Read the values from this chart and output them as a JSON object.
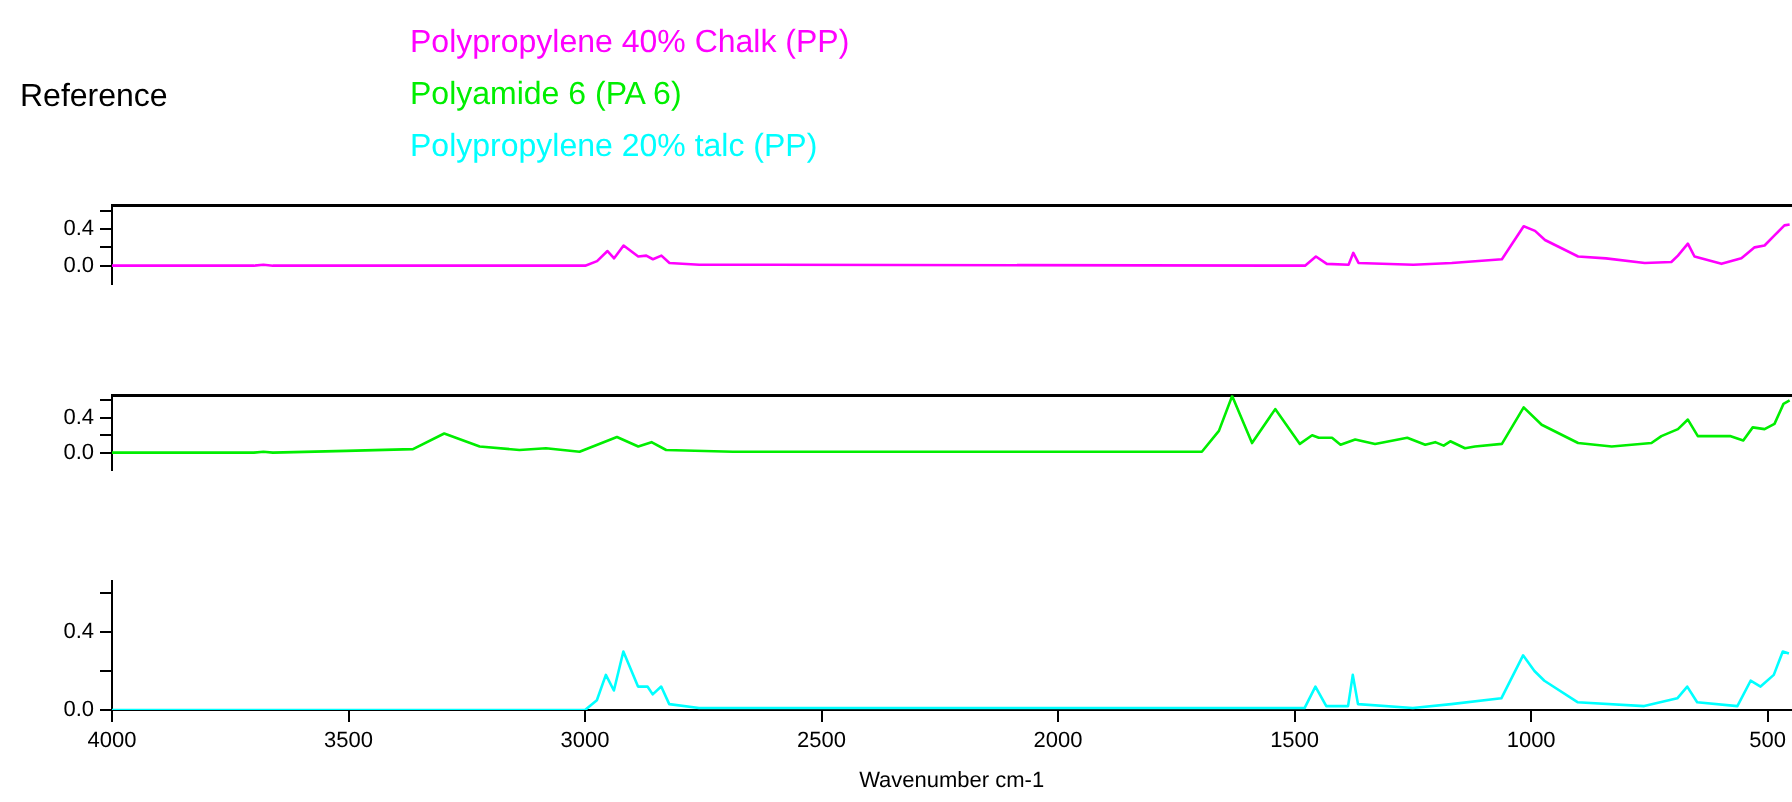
{
  "chart_data": [
    {
      "type": "line",
      "title": "Reference",
      "legend": "top",
      "marker": "none",
      "tick_labels": "y",
      "xlim": [
        4000,
        450
      ],
      "xticks": [
        4000,
        3500,
        3000,
        2500,
        2000,
        1500,
        1000,
        500
      ],
      "ylim": [
        -0.2,
        0.66
      ],
      "yticks": [
        {
          "value": 0,
          "label": "0.0"
        },
        {
          "value": 0.2,
          "label": null
        },
        {
          "value": 0.4,
          "label": "0.4"
        },
        {
          "value": 0.6,
          "label": null
        }
      ],
      "series": [
        {
          "name": "Polypropylene 40% Chalk  (PP)",
          "color": "#ff00ff",
          "x": [
            4000,
            3700,
            3680,
            3660,
            3000,
            2975,
            2953,
            2939,
            2919,
            2888,
            2871,
            2857,
            2839,
            2822,
            2759,
            2600,
            1479,
            1456,
            1433,
            1387,
            1377,
            1366,
            1250,
            1169,
            1063,
            1017,
            993,
            972,
            902,
            843,
            761,
            705,
            691,
            670,
            656,
            599,
            557,
            529,
            508,
            487,
            466,
            455
          ],
          "values": [
            0,
            0,
            0.01,
            0,
            0,
            0.05,
            0.16,
            0.08,
            0.22,
            0.1,
            0.11,
            0.07,
            0.11,
            0.03,
            0.01,
            0.01,
            0,
            0.1,
            0.02,
            0.01,
            0.14,
            0.03,
            0.01,
            0.03,
            0.07,
            0.43,
            0.38,
            0.28,
            0.1,
            0.08,
            0.03,
            0.04,
            0.11,
            0.24,
            0.1,
            0.02,
            0.08,
            0.2,
            0.22,
            0.33,
            0.44,
            0.45
          ]
        }
      ]
    },
    {
      "type": "line",
      "legend": "top",
      "marker": "none",
      "tick_labels": "y",
      "xlim": [
        4000,
        450
      ],
      "xticks": [
        4000,
        3500,
        3000,
        2500,
        2000,
        1500,
        1000,
        500
      ],
      "ylim": [
        -0.2,
        0.66
      ],
      "yticks": [
        {
          "value": 0,
          "label": "0.0"
        },
        {
          "value": 0.2,
          "label": null
        },
        {
          "value": 0.4,
          "label": "0.4"
        },
        {
          "value": 0.6,
          "label": null
        }
      ],
      "series": [
        {
          "name": "Polyamide 6 (PA 6)",
          "color": "#00ee00",
          "x": [
            4000,
            3700,
            3680,
            3660,
            3505,
            3364,
            3298,
            3223,
            3139,
            3083,
            3012,
            2933,
            2888,
            2860,
            2829,
            2688,
            1697,
            1661,
            1633,
            1591,
            1542,
            1490,
            1464,
            1450,
            1422,
            1404,
            1373,
            1331,
            1263,
            1225,
            1204,
            1186,
            1172,
            1141,
            1120,
            1063,
            1017,
            979,
            902,
            831,
            747,
            726,
            691,
            670,
            649,
            581,
            553,
            533,
            508,
            487,
            468,
            455
          ],
          "values": [
            0,
            0,
            0.01,
            0,
            0.02,
            0.04,
            0.22,
            0.07,
            0.03,
            0.05,
            0.01,
            0.18,
            0.07,
            0.12,
            0.03,
            0.01,
            0.01,
            0.25,
            0.65,
            0.11,
            0.5,
            0.1,
            0.2,
            0.17,
            0.17,
            0.09,
            0.15,
            0.1,
            0.17,
            0.09,
            0.12,
            0.08,
            0.13,
            0.05,
            0.07,
            0.1,
            0.52,
            0.32,
            0.11,
            0.07,
            0.11,
            0.19,
            0.27,
            0.38,
            0.19,
            0.19,
            0.14,
            0.29,
            0.27,
            0.33,
            0.56,
            0.6
          ]
        }
      ]
    },
    {
      "type": "line",
      "legend": "top",
      "marker": "none",
      "xlabel": "Wavenumber cm-1",
      "xlim": [
        4000,
        450
      ],
      "xticks": [
        4000,
        3500,
        3000,
        2500,
        2000,
        1500,
        1000,
        500
      ],
      "ylim": [
        0,
        0.66
      ],
      "yticks": [
        {
          "value": 0,
          "label": "0.0"
        },
        {
          "value": 0.2,
          "label": null
        },
        {
          "value": 0.4,
          "label": "0.4"
        },
        {
          "value": 0.6,
          "label": null
        }
      ],
      "series": [
        {
          "name": "Polypropylene 20% talc  (PP)",
          "color": "#00ffff",
          "x": [
            4000,
            3000,
            2975,
            2956,
            2939,
            2919,
            2888,
            2868,
            2857,
            2839,
            2822,
            2759,
            2600,
            1479,
            1456,
            1433,
            1387,
            1377,
            1366,
            1250,
            1169,
            1063,
            1017,
            993,
            972,
            902,
            761,
            691,
            670,
            649,
            564,
            536,
            515,
            487,
            468,
            455
          ],
          "values": [
            0,
            0,
            0.05,
            0.18,
            0.1,
            0.3,
            0.12,
            0.12,
            0.08,
            0.12,
            0.03,
            0.01,
            0.01,
            0.01,
            0.12,
            0.02,
            0.02,
            0.18,
            0.03,
            0.01,
            0.03,
            0.06,
            0.28,
            0.2,
            0.15,
            0.04,
            0.02,
            0.06,
            0.12,
            0.04,
            0.02,
            0.15,
            0.12,
            0.18,
            0.3,
            0.29
          ]
        }
      ]
    }
  ]
}
